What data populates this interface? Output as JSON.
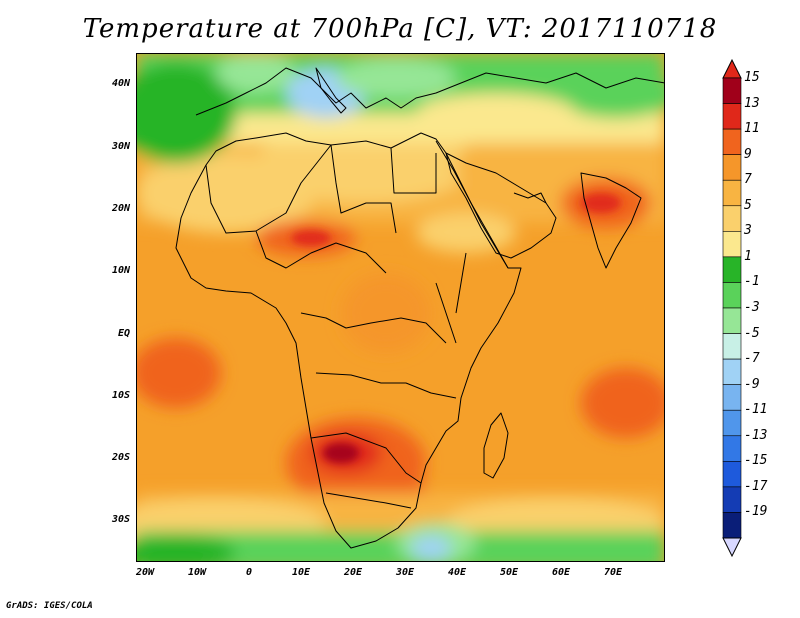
{
  "title": "Temperature at 700hPa [C], VT: 2017110718",
  "credit": "GrADS: IGES/COLA",
  "map": {
    "y_axis_labels": [
      "40N",
      "30N",
      "20N",
      "10N",
      "EQ",
      "10S",
      "20S",
      "30S"
    ],
    "x_axis_labels": [
      "20W",
      "10W",
      "0",
      "10E",
      "20E",
      "30E",
      "40E",
      "50E",
      "60E",
      "70E"
    ],
    "colors": {
      "hot_dark": "#c0101a",
      "hot": "#e8451e",
      "warm": "#f5a02a",
      "warm_light": "#f8c75a",
      "yellow": "#fbe68c",
      "green_dark": "#3cc83c",
      "green": "#6fdc6f",
      "cold_light": "#b0e0f0",
      "cold": "#7cc0e8",
      "blue": "#4c8ee6"
    }
  },
  "colorbar": {
    "labels": [
      "15",
      "13",
      "11",
      "9",
      "7",
      "5",
      "3",
      "1",
      "-1",
      "-3",
      "-5",
      "-7",
      "-9",
      "-11",
      "-13",
      "-15",
      "-17",
      "-19"
    ],
    "colors": [
      "#a0001a",
      "#e0281a",
      "#f0641e",
      "#f5962a",
      "#f8b442",
      "#fad06c",
      "#fbe88e",
      "#28b428",
      "#5ad25a",
      "#96e696",
      "#c8f0e6",
      "#a0d2f5",
      "#78b4f0",
      "#5096eb",
      "#3278e6",
      "#1e5adc",
      "#143cb4",
      "#0a1e78"
    ],
    "top_triangle_color": "#e0281a",
    "bottom_triangle_color": "#d8d8ff"
  }
}
